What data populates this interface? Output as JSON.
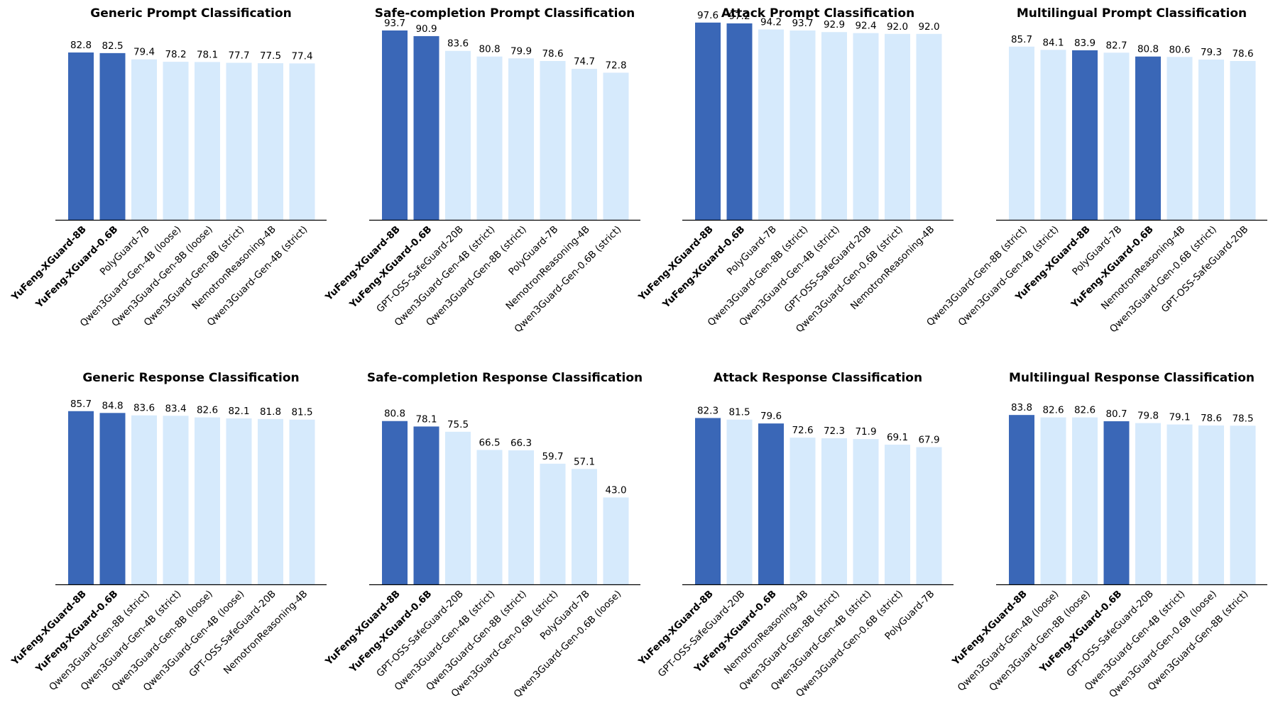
{
  "colors": {
    "highlight": "#3a67b7",
    "other": "#d6eafc",
    "axis": "#000000"
  },
  "chart_data": [
    {
      "type": "bar",
      "title": "Generic Prompt Classification",
      "ylim": [
        0,
        100
      ],
      "categories": [
        "YuFeng-XGuard-8B",
        "YuFeng-XGuard-0.6B",
        "PolyGuard-7B",
        "Qwen3Guard-Gen-4B (loose)",
        "Qwen3Guard-Gen-8B (loose)",
        "Qwen3Guard-Gen-8B (strict)",
        "NemotronReasoning-4B",
        "Qwen3Guard-Gen-4B (strict)"
      ],
      "values": [
        82.8,
        82.5,
        79.4,
        78.2,
        78.1,
        77.7,
        77.5,
        77.4
      ],
      "highlighted": [
        true,
        true,
        false,
        false,
        false,
        false,
        false,
        false
      ]
    },
    {
      "type": "bar",
      "title": "Safe-completion Prompt Classification",
      "ylim": [
        0,
        100
      ],
      "categories": [
        "YuFeng-XGuard-8B",
        "YuFeng-XGuard-0.6B",
        "GPT-OSS-SafeGuard-20B",
        "Qwen3Guard-Gen-4B (strict)",
        "Qwen3Guard-Gen-8B (strict)",
        "PolyGuard-7B",
        "NemotronReasoning-4B",
        "Qwen3Guard-Gen-0.6B (strict)"
      ],
      "values": [
        93.7,
        90.9,
        83.6,
        80.8,
        79.9,
        78.6,
        74.7,
        72.8
      ],
      "highlighted": [
        true,
        true,
        false,
        false,
        false,
        false,
        false,
        false
      ]
    },
    {
      "type": "bar",
      "title": "Attack Prompt Classification",
      "ylim": [
        0,
        100
      ],
      "categories": [
        "YuFeng-XGuard-8B",
        "YuFeng-XGuard-0.6B",
        "PolyGuard-7B",
        "Qwen3Guard-Gen-8B (strict)",
        "Qwen3Guard-Gen-4B (strict)",
        "GPT-OSS-SafeGuard-20B",
        "Qwen3Guard-Gen-0.6B (strict)",
        "NemotronReasoning-4B"
      ],
      "values": [
        97.6,
        97.2,
        94.2,
        93.7,
        92.9,
        92.4,
        92.0,
        92.0
      ],
      "highlighted": [
        true,
        true,
        false,
        false,
        false,
        false,
        false,
        false
      ]
    },
    {
      "type": "bar",
      "title": "Multilingual Prompt Classification",
      "ylim": [
        0,
        100
      ],
      "categories": [
        "Qwen3Guard-Gen-8B (strict)",
        "Qwen3Guard-Gen-4B (strict)",
        "YuFeng-XGuard-8B",
        "PolyGuard-7B",
        "YuFeng-XGuard-0.6B",
        "NemotronReasoning-4B",
        "Qwen3Guard-Gen-0.6B (strict)",
        "GPT-OSS-SafeGuard-20B"
      ],
      "values": [
        85.7,
        84.1,
        83.9,
        82.7,
        80.8,
        80.6,
        79.3,
        78.6
      ],
      "highlighted": [
        false,
        false,
        true,
        false,
        true,
        false,
        false,
        false
      ]
    },
    {
      "type": "bar",
      "title": "Generic Response Classification",
      "ylim": [
        0,
        100
      ],
      "categories": [
        "YuFeng-XGuard-8B",
        "YuFeng-XGuard-0.6B",
        "Qwen3Guard-Gen-8B (strict)",
        "Qwen3Guard-Gen-4B (strict)",
        "Qwen3Guard-Gen-8B (loose)",
        "Qwen3Guard-Gen-4B (loose)",
        "GPT-OSS-SafeGuard-20B",
        "NemotronReasoning-4B"
      ],
      "values": [
        85.7,
        84.8,
        83.6,
        83.4,
        82.6,
        82.1,
        81.8,
        81.5
      ],
      "highlighted": [
        true,
        true,
        false,
        false,
        false,
        false,
        false,
        false
      ]
    },
    {
      "type": "bar",
      "title": "Safe-completion Response Classification",
      "ylim": [
        0,
        100
      ],
      "categories": [
        "YuFeng-XGuard-8B",
        "YuFeng-XGuard-0.6B",
        "GPT-OSS-SafeGuard-20B",
        "Qwen3Guard-Gen-4B (strict)",
        "Qwen3Guard-Gen-8B (strict)",
        "Qwen3Guard-Gen-0.6B (strict)",
        "PolyGuard-7B",
        "Qwen3Guard-Gen-0.6B (loose)"
      ],
      "values": [
        80.8,
        78.1,
        75.5,
        66.5,
        66.3,
        59.7,
        57.1,
        43.0
      ],
      "highlighted": [
        true,
        true,
        false,
        false,
        false,
        false,
        false,
        false
      ]
    },
    {
      "type": "bar",
      "title": "Attack Response Classification",
      "ylim": [
        0,
        100
      ],
      "categories": [
        "YuFeng-XGuard-8B",
        "GPT-OSS-SafeGuard-20B",
        "YuFeng-XGuard-0.6B",
        "NemotronReasoning-4B",
        "Qwen3Guard-Gen-8B (strict)",
        "Qwen3Guard-Gen-4B (strict)",
        "Qwen3Guard-Gen-0.6B (strict)",
        "PolyGuard-7B"
      ],
      "values": [
        82.3,
        81.5,
        79.6,
        72.6,
        72.3,
        71.9,
        69.1,
        67.9
      ],
      "highlighted": [
        true,
        false,
        true,
        false,
        false,
        false,
        false,
        false
      ]
    },
    {
      "type": "bar",
      "title": "Multilingual Response Classification",
      "ylim": [
        0,
        100
      ],
      "categories": [
        "YuFeng-XGuard-8B",
        "Qwen3Guard-Gen-4B (loose)",
        "Qwen3Guard-Gen-8B (loose)",
        "YuFeng-XGuard-0.6B",
        "GPT-OSS-SafeGuard-20B",
        "Qwen3Guard-Gen-4B (strict)",
        "Qwen3Guard-Gen-0.6B (loose)",
        "Qwen3Guard-Gen-8B (strict)"
      ],
      "values": [
        83.8,
        82.6,
        82.6,
        80.7,
        79.8,
        79.1,
        78.6,
        78.5
      ],
      "highlighted": [
        true,
        false,
        false,
        true,
        false,
        false,
        false,
        false
      ]
    }
  ]
}
